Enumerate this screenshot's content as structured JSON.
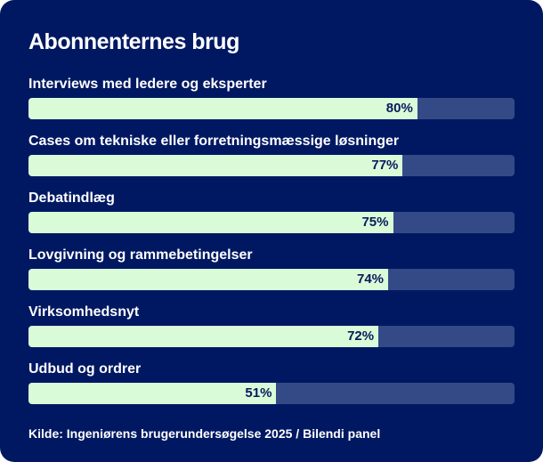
{
  "chart_data": {
    "type": "bar",
    "orientation": "horizontal",
    "title": "Abonnenternes brug",
    "categories": [
      "Interviews med ledere og eksperter",
      "Cases om tekniske eller forretningsmæssige løsninger",
      "Debatindlæg",
      "Lovgivning og rammebetingelser",
      "Virksomhedsnyt",
      "Udbud og ordrer"
    ],
    "values": [
      80,
      77,
      75,
      74,
      72,
      51
    ],
    "value_labels": [
      "80%",
      "77%",
      "75%",
      "74%",
      "72%",
      "51%"
    ],
    "xlim": [
      0,
      100
    ],
    "grid": false,
    "source": "Kilde: Ingeniørens brugerundersøgelse 2025 / Bilendi panel",
    "colors": {
      "background": "#001862",
      "track": "#344a86",
      "fill": "#d9fbd8",
      "value_text": "#0a1a5c",
      "text": "#ffffff"
    }
  }
}
